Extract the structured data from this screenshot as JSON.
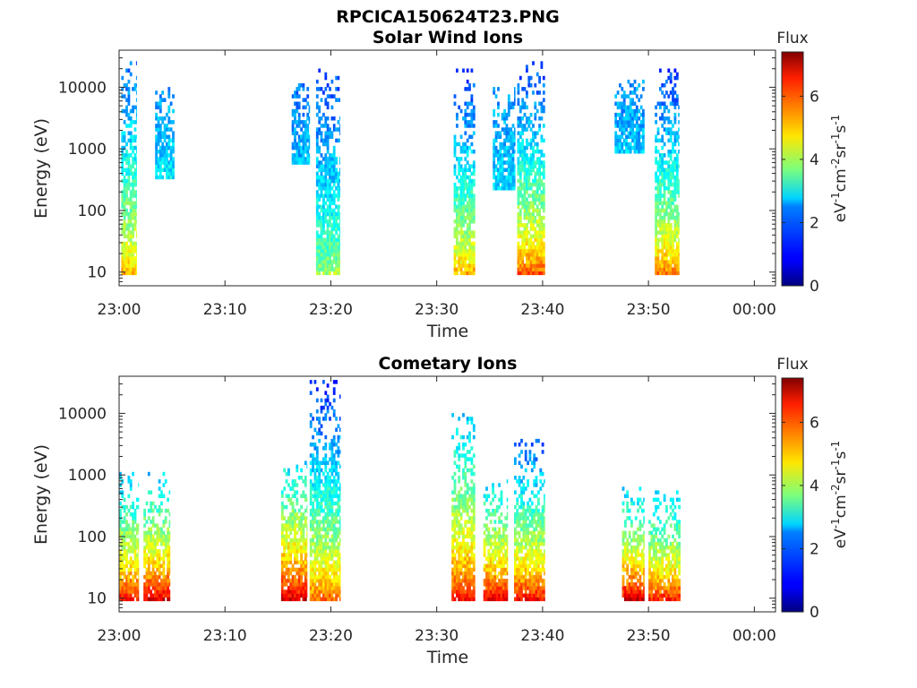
{
  "figure_title": "RPCICA150624T23.PNG",
  "colorbar": {
    "label": "Flux",
    "unit_parts": [
      "eV",
      "-1",
      "cm",
      "-2",
      "sr",
      "-1",
      "s",
      "-1"
    ],
    "ticks": [
      0,
      2,
      4,
      6
    ],
    "range": [
      0,
      7.4
    ],
    "colormap": "jet"
  },
  "chart_data": [
    {
      "type": "heatmap",
      "title": "Solar Wind Ions",
      "xlabel": "Time",
      "ylabel": "Energy (eV)",
      "x_ticks": [
        "23:00",
        "23:10",
        "23:20",
        "23:30",
        "23:40",
        "23:50",
        "00:00"
      ],
      "x_tick_minutes": [
        0,
        10,
        20,
        30,
        40,
        50,
        60
      ],
      "xlim_minutes": [
        0,
        62
      ],
      "y_scale": "log",
      "y_ticks": [
        "10",
        "100",
        "1000",
        "10000"
      ],
      "y_tick_values": [
        10,
        100,
        1000,
        10000
      ],
      "ylim": [
        6,
        40000
      ],
      "bursts": [
        {
          "t_start": 0.2,
          "t_end": 1.6,
          "low_energy": 8,
          "low_flux": 5.5,
          "high_flux": 1.6,
          "max_energy": 30000
        },
        {
          "t_start": 3.4,
          "t_end": 5.2,
          "low_energy": 300,
          "low_flux": 2.8,
          "high_flux": 2.0,
          "max_energy": 10000
        },
        {
          "t_start": 16.3,
          "t_end": 18.0,
          "low_energy": 500,
          "low_flux": 2.5,
          "high_flux": 1.8,
          "max_energy": 12000
        },
        {
          "t_start": 18.6,
          "t_end": 20.8,
          "low_energy": 8,
          "low_flux": 4.2,
          "high_flux": 1.4,
          "max_energy": 20000
        },
        {
          "t_start": 31.6,
          "t_end": 33.6,
          "low_energy": 8,
          "low_flux": 5.6,
          "high_flux": 1.3,
          "max_energy": 18000
        },
        {
          "t_start": 35.3,
          "t_end": 37.4,
          "low_energy": 200,
          "low_flux": 2.6,
          "high_flux": 2.0,
          "max_energy": 10000
        },
        {
          "t_start": 37.6,
          "t_end": 40.2,
          "low_energy": 8,
          "low_flux": 6.3,
          "high_flux": 1.3,
          "max_energy": 25000
        },
        {
          "t_start": 46.8,
          "t_end": 49.6,
          "low_energy": 800,
          "low_flux": 2.4,
          "high_flux": 2.0,
          "max_energy": 12000
        },
        {
          "t_start": 50.6,
          "t_end": 52.9,
          "low_energy": 8,
          "low_flux": 6.0,
          "high_flux": 1.3,
          "max_energy": 20000
        }
      ]
    },
    {
      "type": "heatmap",
      "title": "Cometary Ions",
      "xlabel": "Time",
      "ylabel": "Energy (eV)",
      "x_ticks": [
        "23:00",
        "23:10",
        "23:20",
        "23:30",
        "23:40",
        "23:50",
        "00:00"
      ],
      "x_tick_minutes": [
        0,
        10,
        20,
        30,
        40,
        50,
        60
      ],
      "xlim_minutes": [
        0,
        62
      ],
      "y_scale": "log",
      "y_ticks": [
        "10",
        "100",
        "1000",
        "10000"
      ],
      "y_tick_values": [
        10,
        100,
        1000,
        10000
      ],
      "ylim": [
        6,
        40000
      ],
      "bursts": [
        {
          "t_start": 0.0,
          "t_end": 1.8,
          "low_energy": 8,
          "low_flux": 7.0,
          "high_flux": 2.2,
          "max_energy": 1200
        },
        {
          "t_start": 2.3,
          "t_end": 4.8,
          "low_energy": 8,
          "low_flux": 7.2,
          "high_flux": 2.4,
          "max_energy": 1100
        },
        {
          "t_start": 15.3,
          "t_end": 17.7,
          "low_energy": 8,
          "low_flux": 7.3,
          "high_flux": 2.6,
          "max_energy": 1500
        },
        {
          "t_start": 18.0,
          "t_end": 20.9,
          "low_energy": 8,
          "low_flux": 6.2,
          "high_flux": 1.2,
          "max_energy": 32000
        },
        {
          "t_start": 31.4,
          "t_end": 33.6,
          "low_energy": 8,
          "low_flux": 6.8,
          "high_flux": 2.3,
          "max_energy": 10000
        },
        {
          "t_start": 34.4,
          "t_end": 36.7,
          "low_energy": 8,
          "low_flux": 7.2,
          "high_flux": 2.5,
          "max_energy": 800
        },
        {
          "t_start": 37.3,
          "t_end": 40.2,
          "low_energy": 8,
          "low_flux": 7.0,
          "high_flux": 1.6,
          "max_energy": 3500
        },
        {
          "t_start": 47.5,
          "t_end": 49.6,
          "low_energy": 8,
          "low_flux": 7.4,
          "high_flux": 2.4,
          "max_energy": 600
        },
        {
          "t_start": 50.0,
          "t_end": 53.0,
          "low_energy": 8,
          "low_flux": 6.8,
          "high_flux": 2.4,
          "max_energy": 500
        }
      ]
    }
  ]
}
